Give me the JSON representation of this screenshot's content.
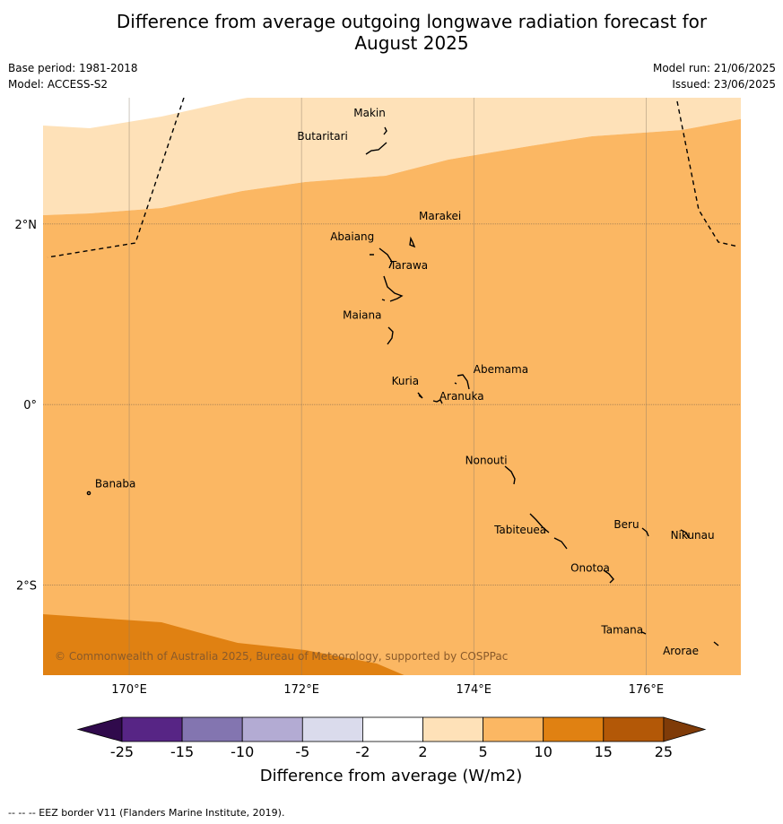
{
  "title_line1": "Difference from average outgoing longwave radiation forecast for",
  "title_line2": "August 2025",
  "base_period": "Base period: 1981-2018",
  "model": "Model: ACCESS-S2",
  "model_run": "Model run: 21/06/2025",
  "issued": "Issued: 23/06/2025",
  "copyright": "© Commonwealth of Australia 2025, Bureau of Meteorology, supported by COSPPac",
  "footer": "--  --  -- EEZ border V11 (Flanders Marine Institute, 2019).",
  "map": {
    "lon_range": [
      169.0,
      177.1
    ],
    "lat_range": [
      -3.0,
      3.4
    ],
    "lon_ticks": [
      {
        "value": 170,
        "label": "170°E"
      },
      {
        "value": 172,
        "label": "172°E"
      },
      {
        "value": 174,
        "label": "174°E"
      },
      {
        "value": 176,
        "label": "176°E"
      }
    ],
    "lat_ticks": [
      {
        "value": 2,
        "label": "2°N"
      },
      {
        "value": 0,
        "label": "0°"
      },
      {
        "value": -2,
        "label": "2°S"
      }
    ],
    "places": [
      {
        "name": "Makin",
        "lon": 172.98,
        "lat": 3.27
      },
      {
        "name": "Butaritari",
        "lon": 172.95,
        "lat": 3.05
      },
      {
        "name": "Marakei",
        "lon": 173.3,
        "lat": 2.0
      },
      {
        "name": "Abaiang",
        "lon": 173.0,
        "lat": 1.82
      },
      {
        "name": "Tarawa",
        "lon": 173.05,
        "lat": 1.42
      },
      {
        "name": "Maiana",
        "lon": 173.02,
        "lat": 0.95
      },
      {
        "name": "Abemama",
        "lon": 173.87,
        "lat": 0.42
      },
      {
        "name": "Kuria",
        "lon": 173.4,
        "lat": 0.22
      },
      {
        "name": "Aranuka",
        "lon": 173.6,
        "lat": 0.17
      },
      {
        "name": "Nonouti",
        "lon": 174.4,
        "lat": -0.68
      },
      {
        "name": "Banaba",
        "lon": 169.54,
        "lat": -0.86
      },
      {
        "name": "Tabiteuea",
        "lon": 174.8,
        "lat": -1.35
      },
      {
        "name": "Beru",
        "lon": 175.98,
        "lat": -1.33
      },
      {
        "name": "Nikunau",
        "lon": 176.45,
        "lat": -1.36
      },
      {
        "name": "Onotoa",
        "lon": 175.55,
        "lat": -1.8
      },
      {
        "name": "Tamana",
        "lon": 175.98,
        "lat": -2.5
      },
      {
        "name": "Arorae",
        "lon": 176.82,
        "lat": -2.65
      }
    ]
  },
  "legend": {
    "title": "Difference from average (W/m2)",
    "bounds": [
      "-25",
      "-15",
      "-10",
      "-5",
      "-2",
      "2",
      "5",
      "10",
      "15",
      "25"
    ],
    "colors": [
      "#572585",
      "#8375b0",
      "#b3abd3",
      "#dadbec",
      "#ffffff",
      "#fee1b8",
      "#fbb763",
      "#e08112",
      "#b35807"
    ],
    "under_color": "#300a4c",
    "over_color": "#7f3b08"
  },
  "regions": {
    "band_2_5": "#fee1b8",
    "band_5_10": "#fbb763",
    "band_10_15": "#e08112"
  }
}
